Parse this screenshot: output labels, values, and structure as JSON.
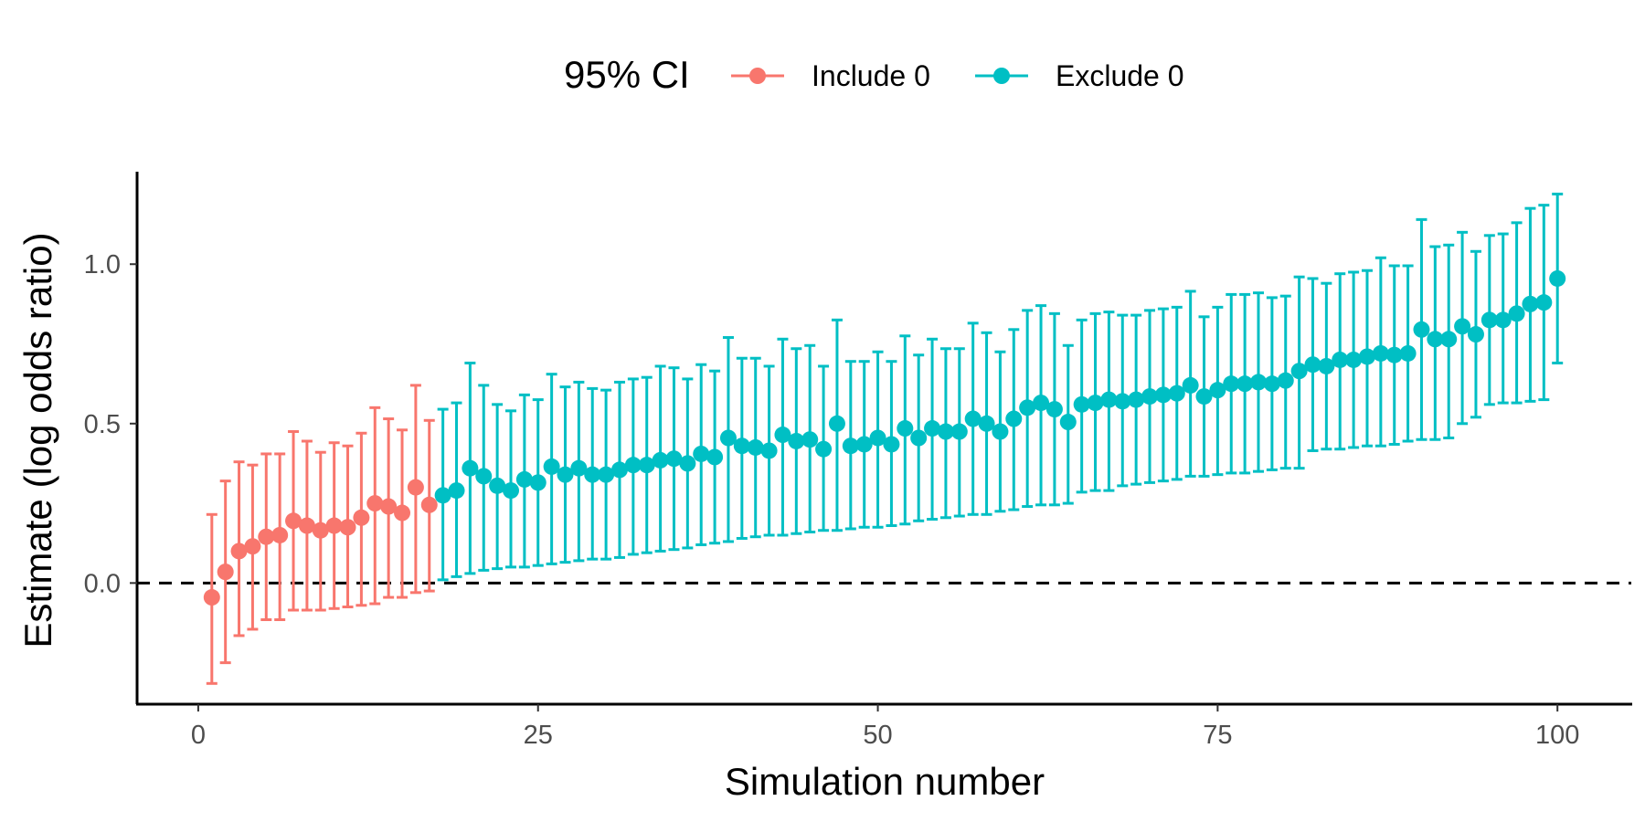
{
  "chart_data": {
    "type": "scatter",
    "xlabel": "Simulation number",
    "ylabel": "Estimate (log odds ratio)",
    "xlim": [
      -4.5,
      105.5
    ],
    "ylim": [
      -0.38,
      1.29
    ],
    "x_ticks": [
      0,
      25,
      50,
      75,
      100
    ],
    "x_tick_labels": [
      "0",
      "25",
      "50",
      "75",
      "100"
    ],
    "y_ticks": [
      0.0,
      0.5,
      1.0
    ],
    "y_tick_labels": [
      "0.0",
      "0.5",
      "1.0"
    ],
    "reference_line": {
      "y": 0,
      "style": "dashed"
    },
    "grid": false,
    "legend": {
      "title": "95% CI",
      "position": "top",
      "entries": [
        {
          "name": "Include 0",
          "color": "#F8766D"
        },
        {
          "name": "Exclude 0",
          "color": "#00BFC4"
        }
      ]
    },
    "series": [
      {
        "name": "Include 0",
        "color": "#F8766D",
        "x": [
          1,
          2,
          3,
          4,
          5,
          6,
          7,
          8,
          9,
          10,
          11,
          12,
          13,
          14,
          15,
          16,
          17
        ],
        "estimate": [
          -0.045,
          0.035,
          0.1,
          0.115,
          0.145,
          0.15,
          0.195,
          0.18,
          0.165,
          0.18,
          0.175,
          0.205,
          0.25,
          0.24,
          0.22,
          0.3,
          0.245
        ],
        "lower": [
          -0.315,
          -0.25,
          -0.165,
          -0.145,
          -0.115,
          -0.115,
          -0.085,
          -0.085,
          -0.085,
          -0.08,
          -0.075,
          -0.07,
          -0.065,
          -0.045,
          -0.045,
          -0.03,
          -0.025
        ],
        "upper": [
          0.215,
          0.32,
          0.38,
          0.37,
          0.405,
          0.405,
          0.475,
          0.445,
          0.41,
          0.44,
          0.43,
          0.47,
          0.55,
          0.515,
          0.48,
          0.62,
          0.51
        ]
      },
      {
        "name": "Exclude 0",
        "color": "#00BFC4",
        "x": [
          18,
          19,
          20,
          21,
          22,
          23,
          24,
          25,
          26,
          27,
          28,
          29,
          30,
          31,
          32,
          33,
          34,
          35,
          36,
          37,
          38,
          39,
          40,
          41,
          42,
          43,
          44,
          45,
          46,
          47,
          48,
          49,
          50,
          51,
          52,
          53,
          54,
          55,
          56,
          57,
          58,
          59,
          60,
          61,
          62,
          63,
          64,
          65,
          66,
          67,
          68,
          69,
          70,
          71,
          72,
          73,
          74,
          75,
          76,
          77,
          78,
          79,
          80,
          81,
          82,
          83,
          84,
          85,
          86,
          87,
          88,
          89,
          90,
          91,
          92,
          93,
          94,
          95,
          96,
          97,
          98,
          99,
          100
        ],
        "estimate": [
          0.275,
          0.29,
          0.36,
          0.335,
          0.305,
          0.29,
          0.325,
          0.315,
          0.365,
          0.34,
          0.36,
          0.34,
          0.34,
          0.355,
          0.37,
          0.37,
          0.385,
          0.39,
          0.375,
          0.405,
          0.395,
          0.455,
          0.43,
          0.425,
          0.415,
          0.465,
          0.445,
          0.45,
          0.42,
          0.5,
          0.43,
          0.435,
          0.455,
          0.435,
          0.485,
          0.455,
          0.485,
          0.475,
          0.475,
          0.515,
          0.5,
          0.475,
          0.515,
          0.55,
          0.565,
          0.545,
          0.505,
          0.56,
          0.565,
          0.575,
          0.57,
          0.575,
          0.585,
          0.59,
          0.595,
          0.62,
          0.585,
          0.605,
          0.625,
          0.625,
          0.63,
          0.625,
          0.635,
          0.665,
          0.685,
          0.68,
          0.7,
          0.7,
          0.71,
          0.72,
          0.715,
          0.72,
          0.795,
          0.765,
          0.765,
          0.805,
          0.78,
          0.825,
          0.825,
          0.845,
          0.875,
          0.88,
          0.955
        ],
        "lower": [
          0.01,
          0.02,
          0.03,
          0.04,
          0.045,
          0.05,
          0.05,
          0.055,
          0.06,
          0.065,
          0.07,
          0.075,
          0.075,
          0.08,
          0.09,
          0.095,
          0.1,
          0.105,
          0.11,
          0.12,
          0.125,
          0.13,
          0.14,
          0.145,
          0.15,
          0.15,
          0.155,
          0.16,
          0.165,
          0.165,
          0.17,
          0.175,
          0.175,
          0.18,
          0.185,
          0.195,
          0.2,
          0.205,
          0.21,
          0.215,
          0.215,
          0.225,
          0.23,
          0.24,
          0.245,
          0.245,
          0.25,
          0.285,
          0.29,
          0.29,
          0.305,
          0.31,
          0.315,
          0.32,
          0.325,
          0.335,
          0.335,
          0.34,
          0.345,
          0.345,
          0.35,
          0.355,
          0.36,
          0.36,
          0.415,
          0.42,
          0.42,
          0.425,
          0.43,
          0.43,
          0.435,
          0.445,
          0.45,
          0.45,
          0.455,
          0.5,
          0.52,
          0.56,
          0.565,
          0.565,
          0.57,
          0.575,
          0.69
        ],
        "upper": [
          0.545,
          0.565,
          0.69,
          0.62,
          0.56,
          0.54,
          0.59,
          0.575,
          0.655,
          0.615,
          0.63,
          0.61,
          0.605,
          0.63,
          0.64,
          0.645,
          0.68,
          0.675,
          0.64,
          0.685,
          0.665,
          0.77,
          0.705,
          0.705,
          0.68,
          0.765,
          0.735,
          0.745,
          0.68,
          0.825,
          0.695,
          0.695,
          0.725,
          0.695,
          0.775,
          0.715,
          0.765,
          0.735,
          0.735,
          0.815,
          0.785,
          0.725,
          0.795,
          0.855,
          0.87,
          0.845,
          0.745,
          0.825,
          0.845,
          0.85,
          0.84,
          0.84,
          0.855,
          0.86,
          0.865,
          0.915,
          0.835,
          0.865,
          0.905,
          0.905,
          0.91,
          0.895,
          0.9,
          0.96,
          0.955,
          0.94,
          0.97,
          0.975,
          0.98,
          1.02,
          0.995,
          0.995,
          1.14,
          1.055,
          1.06,
          1.1,
          1.04,
          1.09,
          1.095,
          1.13,
          1.175,
          1.185,
          1.22
        ]
      }
    ]
  }
}
